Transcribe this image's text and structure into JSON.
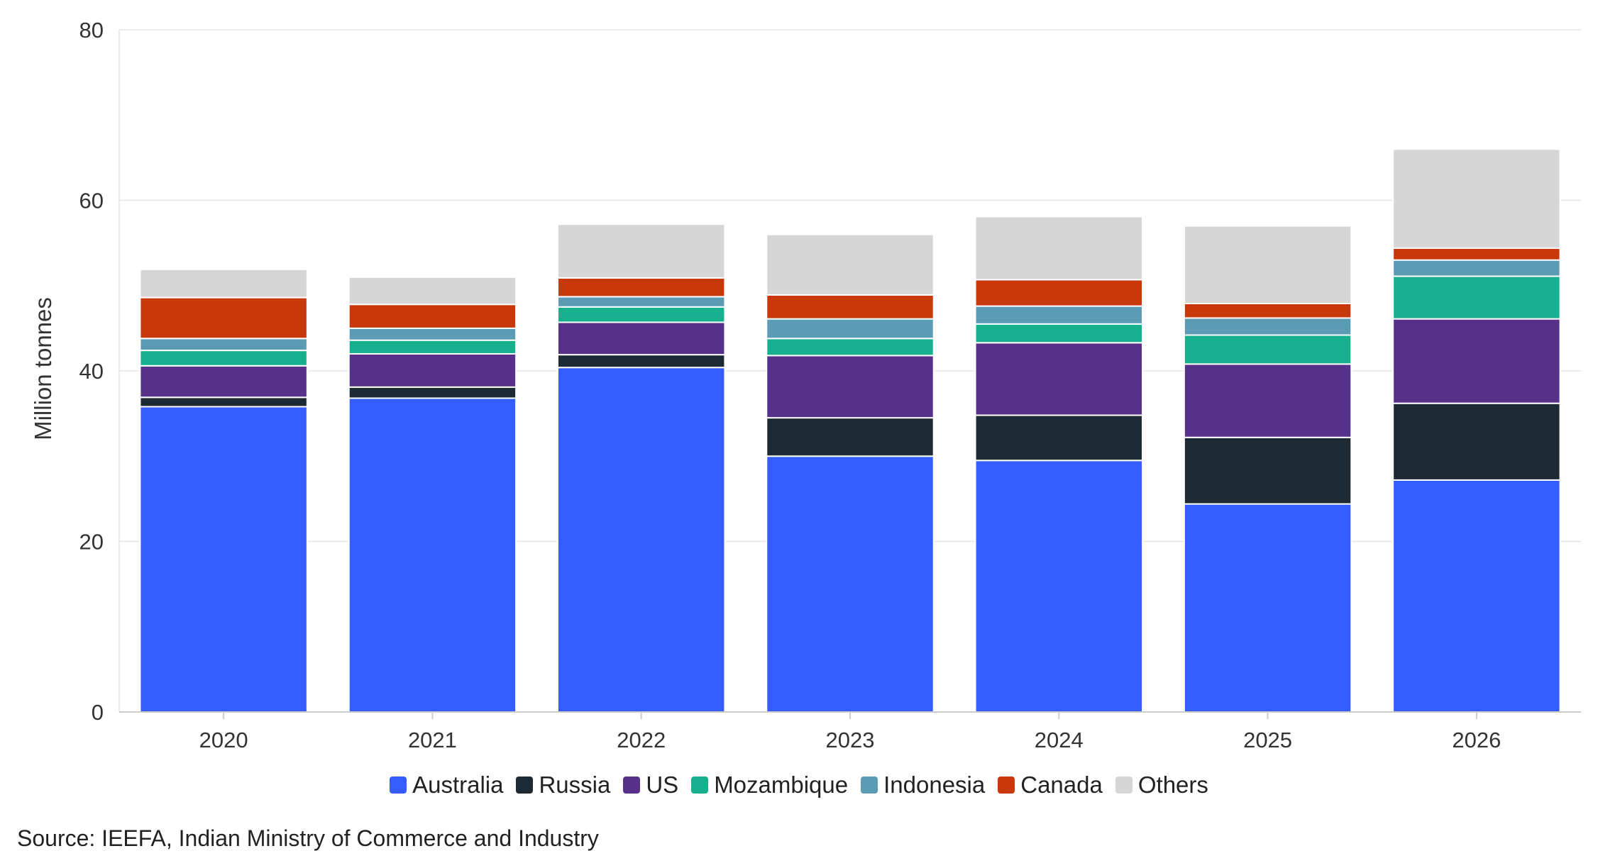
{
  "chart_data": {
    "type": "bar",
    "stacked": true,
    "categories": [
      "2020",
      "2021",
      "2022",
      "2023",
      "2024",
      "2025",
      "2026"
    ],
    "ylabel": "Million tonnes",
    "ylim": [
      0,
      80
    ],
    "yticks": [
      0,
      20,
      40,
      60,
      80
    ],
    "grid": true,
    "legend_position": "bottom-center",
    "series": [
      {
        "name": "Australia",
        "color": "#355cff",
        "values": [
          35.8,
          36.8,
          40.4,
          30.0,
          29.5,
          24.4,
          27.2
        ]
      },
      {
        "name": "Russia",
        "color": "#1e2a33",
        "values": [
          1.1,
          1.3,
          1.5,
          4.5,
          5.3,
          7.8,
          9.0
        ]
      },
      {
        "name": "US",
        "color": "#57308a",
        "values": [
          3.7,
          3.9,
          3.8,
          7.3,
          8.5,
          8.6,
          9.9
        ]
      },
      {
        "name": "Mozambique",
        "color": "#16b08e",
        "values": [
          1.8,
          1.6,
          1.8,
          2.0,
          2.2,
          3.4,
          5.0
        ]
      },
      {
        "name": "Indonesia",
        "color": "#5b9bb4",
        "values": [
          1.4,
          1.4,
          1.2,
          2.3,
          2.1,
          2.0,
          1.9
        ]
      },
      {
        "name": "Canada",
        "color": "#c8380b",
        "values": [
          4.8,
          2.8,
          2.2,
          2.8,
          3.1,
          1.7,
          1.4
        ]
      },
      {
        "name": "Others",
        "color": "#d6d6d6",
        "values": [
          3.3,
          3.2,
          6.3,
          7.1,
          7.4,
          9.1,
          11.6
        ]
      }
    ]
  },
  "source": "Source: IEEFA, Indian Ministry of Commerce and Industry"
}
